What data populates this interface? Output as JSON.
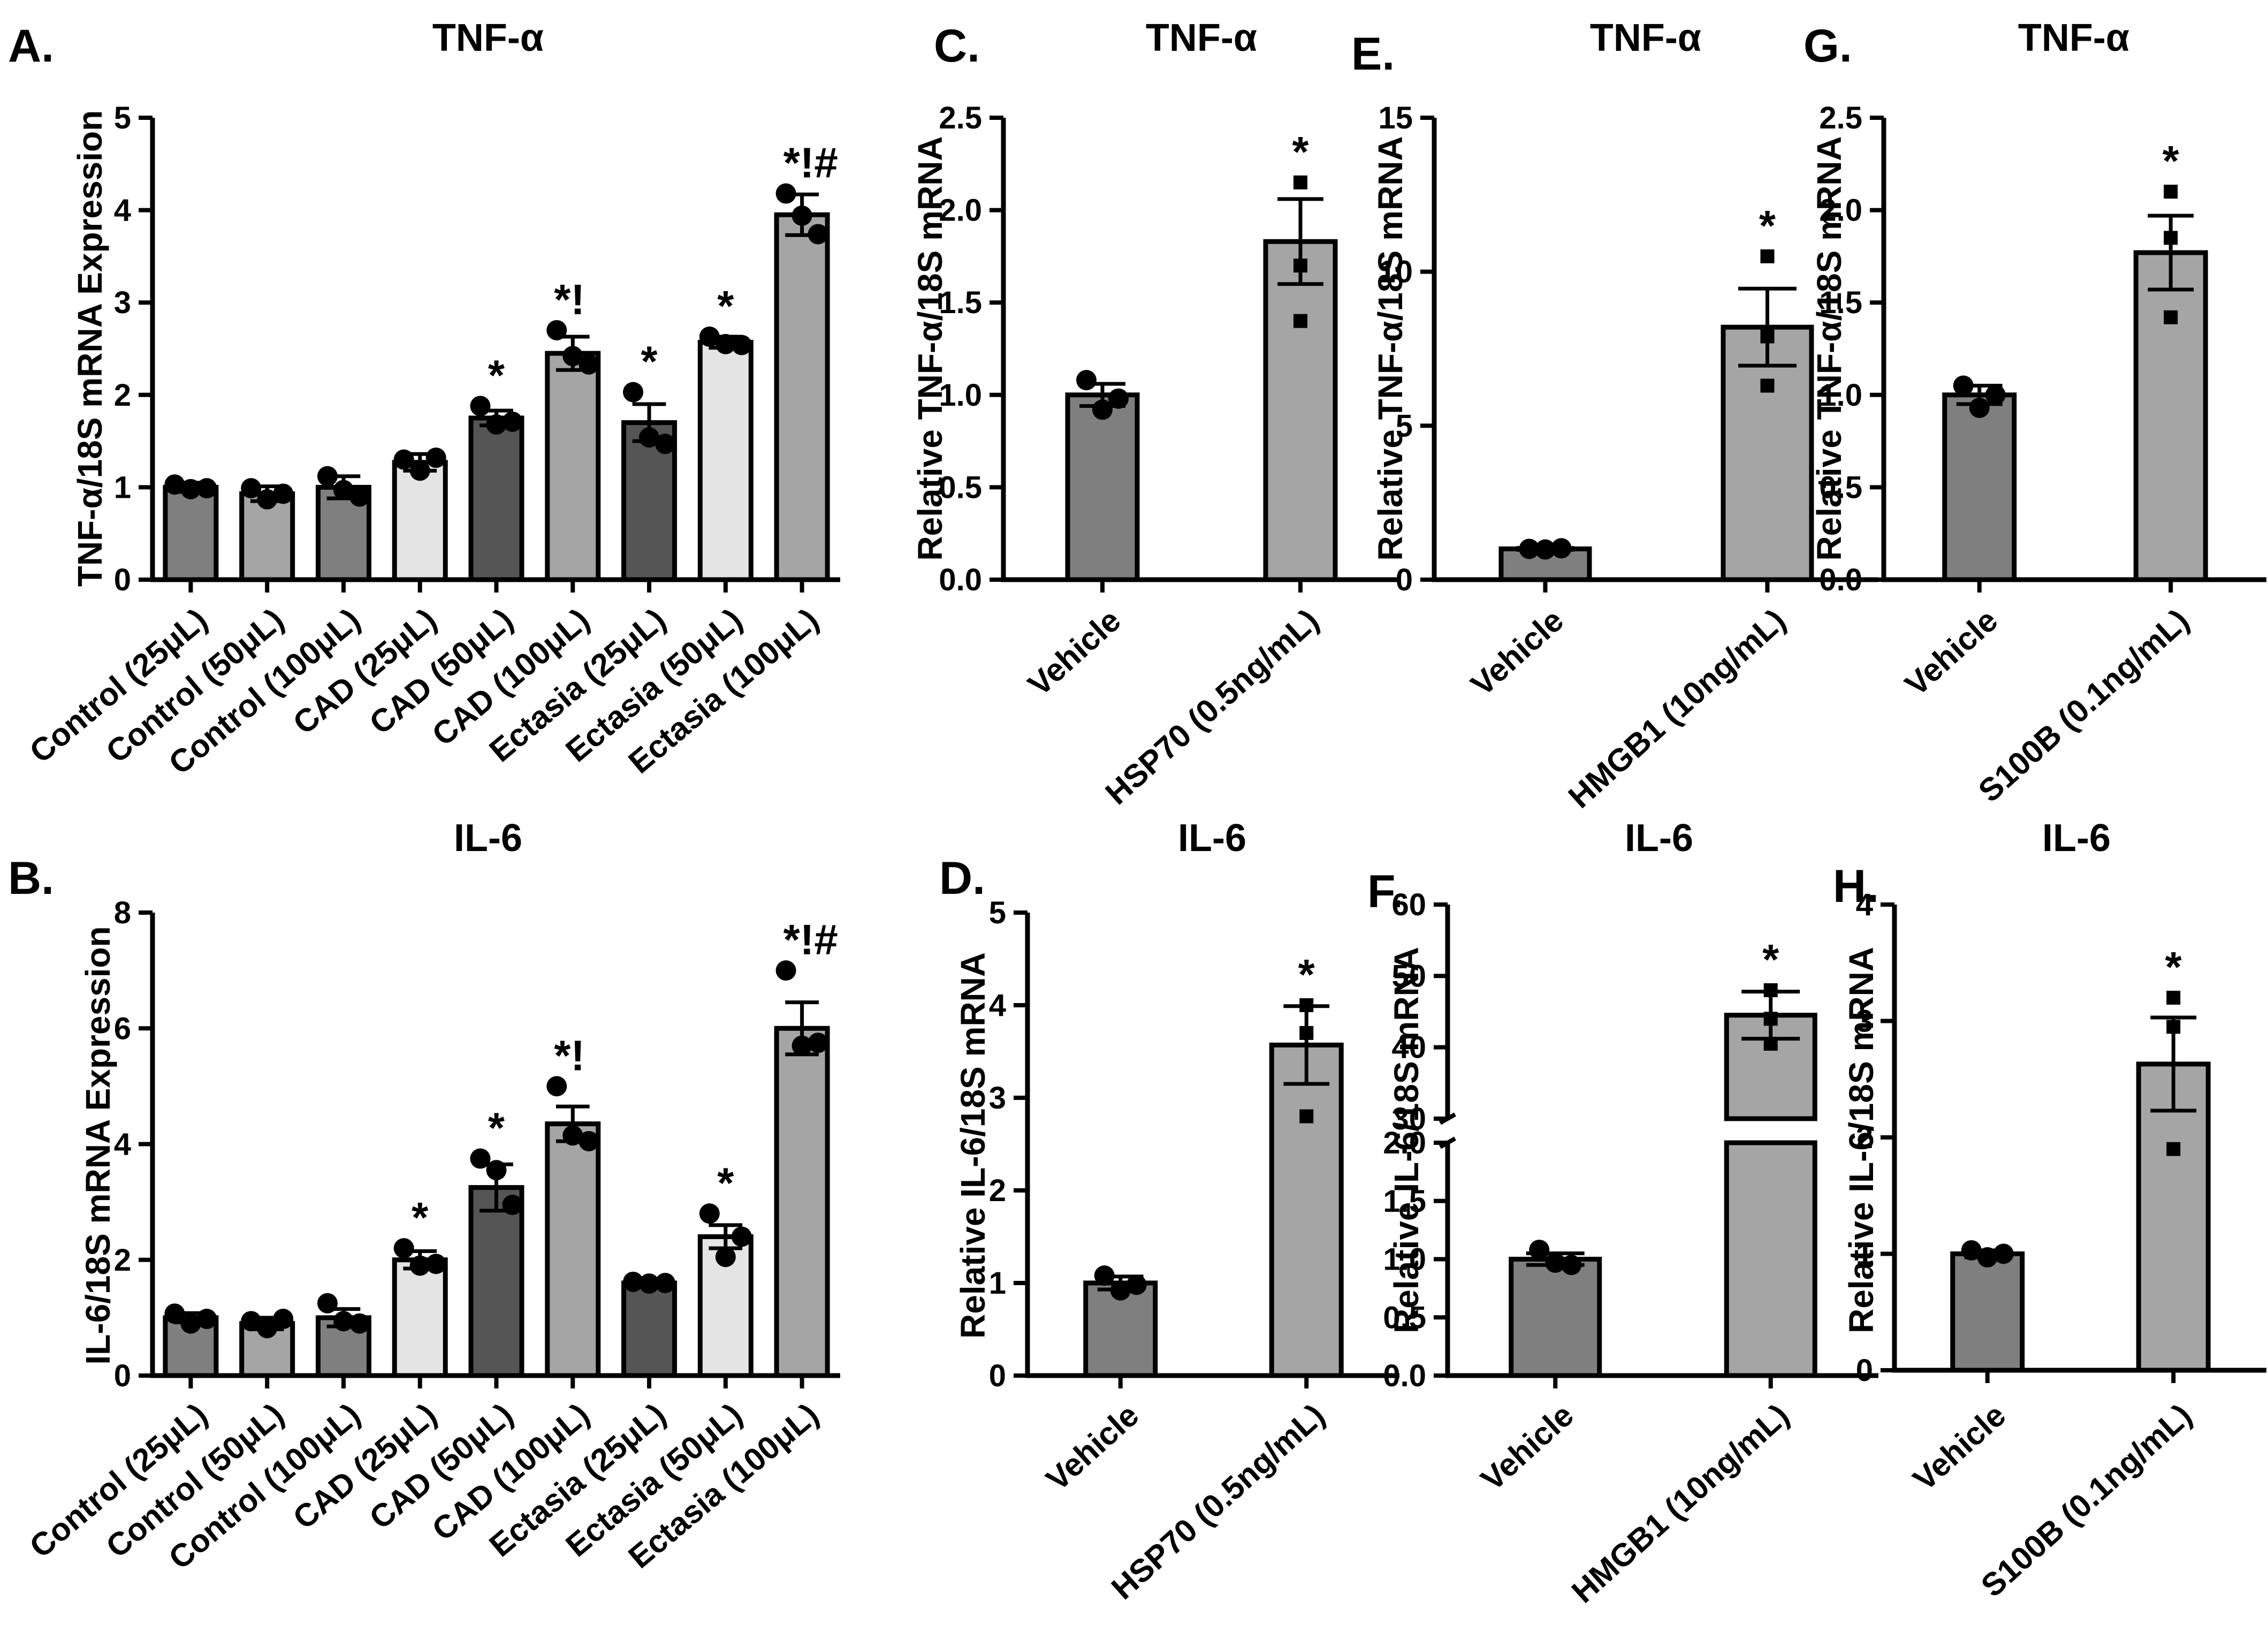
{
  "chart_data": [
    {
      "id": "A",
      "type": "bar",
      "letter": "A.",
      "title": "TNF-α",
      "ylabel": "TNF-α/18S mRNA Expression",
      "ylim": [
        0,
        5
      ],
      "yticks": [
        0,
        1,
        2,
        3,
        4,
        5
      ],
      "categories": [
        "Control (25μL)",
        "Control (50μL)",
        "Control (100μL)",
        "CAD (25μL)",
        "CAD (50μL)",
        "CAD (100μL)",
        "Ectasia (25μL)",
        "Ectasia (50μL)",
        "Ectasia (100μL)"
      ],
      "values": [
        1.0,
        0.93,
        1.0,
        1.27,
        1.75,
        2.45,
        1.7,
        2.57,
        3.95
      ],
      "errors": [
        0.05,
        0.08,
        0.12,
        0.09,
        0.08,
        0.18,
        0.2,
        0.06,
        0.22
      ],
      "points": [
        [
          1.03,
          0.98,
          0.99
        ],
        [
          0.99,
          0.87,
          0.93
        ],
        [
          1.12,
          0.97,
          0.9
        ],
        [
          1.3,
          1.18,
          1.32
        ],
        [
          1.88,
          1.68,
          1.71
        ],
        [
          2.7,
          2.42,
          2.33
        ],
        [
          2.03,
          1.54,
          1.47
        ],
        [
          2.63,
          2.55,
          2.54
        ],
        [
          4.18,
          3.94,
          3.74
        ]
      ],
      "fills": [
        "#7f7f7f",
        "#a5a5a5",
        "#7f7f7f",
        "#e4e4e4",
        "#555555",
        "#a5a5a5",
        "#555555",
        "#e4e4e4",
        "#a5a5a5"
      ],
      "annotations": [
        "",
        "",
        "",
        "",
        "*",
        "*!",
        "*",
        "*",
        "*!#"
      ],
      "marker": "circle"
    },
    {
      "id": "B",
      "type": "bar",
      "letter": "B.",
      "title": "IL-6",
      "ylabel": "IL-6/18S mRNA Expression",
      "ylim": [
        0,
        8
      ],
      "yticks": [
        0,
        2,
        4,
        6,
        8
      ],
      "categories": [
        "Control (25μL)",
        "Control (50μL)",
        "Control (100μL)",
        "CAD (25μL)",
        "CAD (50μL)",
        "CAD (100μL)",
        "Ectasia (25μL)",
        "Ectasia (50μL)",
        "Ectasia (100μL)"
      ],
      "values": [
        1.0,
        0.9,
        1.0,
        2.0,
        3.25,
        4.35,
        1.6,
        2.4,
        6.0
      ],
      "errors": [
        0.08,
        0.1,
        0.15,
        0.15,
        0.4,
        0.3,
        0.04,
        0.2,
        0.45
      ],
      "points": [
        [
          1.07,
          0.9,
          0.98
        ],
        [
          0.94,
          0.82,
          0.98
        ],
        [
          1.25,
          0.94,
          0.9
        ],
        [
          2.2,
          1.9,
          1.93
        ],
        [
          3.75,
          3.55,
          2.95
        ],
        [
          5.0,
          4.15,
          4.05
        ],
        [
          1.62,
          1.59,
          1.6
        ],
        [
          2.8,
          2.05,
          2.4
        ],
        [
          7.0,
          5.7,
          5.75
        ]
      ],
      "fills": [
        "#7f7f7f",
        "#a5a5a5",
        "#7f7f7f",
        "#e4e4e4",
        "#555555",
        "#a5a5a5",
        "#555555",
        "#e4e4e4",
        "#a5a5a5"
      ],
      "annotations": [
        "",
        "",
        "",
        "*",
        "*",
        "*!",
        "",
        "*",
        "*!#"
      ],
      "marker": "circle"
    },
    {
      "id": "C",
      "type": "bar",
      "letter": "C.",
      "title": "TNF-α",
      "ylabel": "Relative TNF-α/18S mRNA",
      "ylim": [
        0,
        2.5
      ],
      "yticks": [
        "0.0",
        "0.5",
        "1.0",
        "1.5",
        "2.0",
        "2.5"
      ],
      "categories": [
        "Vehicle",
        "HSP70 (0.5ng/mL)"
      ],
      "values": [
        1.0,
        1.83
      ],
      "errors": [
        0.06,
        0.23
      ],
      "points": [
        [
          1.08,
          0.92,
          0.98
        ],
        [
          2.15,
          1.7,
          1.4
        ]
      ],
      "fills": [
        "#7f7f7f",
        "#a5a5a5"
      ],
      "annotations": [
        "",
        "*"
      ],
      "markers": [
        "circle",
        "square"
      ]
    },
    {
      "id": "D",
      "type": "bar",
      "letter": "D.",
      "title": "IL-6",
      "ylabel": "Relative IL-6/18S mRNA",
      "ylim": [
        0,
        5
      ],
      "yticks": [
        0,
        1,
        2,
        3,
        4,
        5
      ],
      "categories": [
        "Vehicle",
        "HSP70 (0.5ng/mL)"
      ],
      "values": [
        1.0,
        3.57
      ],
      "errors": [
        0.07,
        0.42
      ],
      "points": [
        [
          1.08,
          0.92,
          0.98
        ],
        [
          4.0,
          3.7,
          2.8
        ]
      ],
      "fills": [
        "#7f7f7f",
        "#a5a5a5"
      ],
      "annotations": [
        "",
        "*"
      ],
      "markers": [
        "circle",
        "square"
      ]
    },
    {
      "id": "E",
      "type": "bar",
      "letter": "E.",
      "title": "TNF-α",
      "ylabel": "Relative TNF-α/18S mRNA",
      "ylim": [
        0,
        15
      ],
      "yticks": [
        0,
        5,
        10,
        15
      ],
      "categories": [
        "Vehicle",
        "HMGB1 (10ng/mL)"
      ],
      "values": [
        1.0,
        8.2
      ],
      "errors": [
        0.03,
        1.25
      ],
      "points": [
        [
          1.0,
          0.98,
          1.02
        ],
        [
          10.5,
          7.9,
          6.3
        ]
      ],
      "fills": [
        "#7f7f7f",
        "#a5a5a5"
      ],
      "annotations": [
        "",
        "*"
      ],
      "markers": [
        "circle",
        "square"
      ]
    },
    {
      "id": "F",
      "type": "bar-broken-axis",
      "letter": "F.",
      "title": "IL-6",
      "ylabel": "Relative IL-6/18S mRNA",
      "lower_ylim": [
        0,
        2.0
      ],
      "lower_yticks": [
        "0.0",
        "0.5",
        "1.0",
        "1.5",
        "2.0"
      ],
      "upper_ylim": [
        30,
        60
      ],
      "upper_yticks": [
        30,
        40,
        50,
        60
      ],
      "categories": [
        "Vehicle",
        "HMGB1 (10ng/mL)"
      ],
      "values": [
        1.0,
        44.5
      ],
      "errors": [
        0.05,
        3.3
      ],
      "points": [
        [
          1.08,
          0.97,
          0.95
        ],
        [
          48.0,
          44.0,
          40.5
        ]
      ],
      "fills": [
        "#7f7f7f",
        "#a5a5a5"
      ],
      "annotations": [
        "",
        "*"
      ],
      "markers": [
        "circle",
        "square"
      ]
    },
    {
      "id": "G",
      "type": "bar",
      "letter": "G.",
      "title": "TNF-α",
      "ylabel": "Relative TNF-α/18S mRNA",
      "ylim": [
        0,
        2.5
      ],
      "yticks": [
        "0.0",
        "0.5",
        "1.0",
        "1.5",
        "2.0",
        "2.5"
      ],
      "categories": [
        "Vehicle",
        "S100B (0.1ng/mL)"
      ],
      "values": [
        1.0,
        1.77
      ],
      "errors": [
        0.05,
        0.2
      ],
      "points": [
        [
          1.05,
          0.93,
          1.0
        ],
        [
          2.1,
          1.85,
          1.42
        ]
      ],
      "fills": [
        "#7f7f7f",
        "#a5a5a5"
      ],
      "annotations": [
        "",
        "*"
      ],
      "markers": [
        "circle",
        "square"
      ]
    },
    {
      "id": "H",
      "type": "bar",
      "letter": "H.",
      "title": "IL-6",
      "ylabel": "Relative IL-6/18S mRNA",
      "ylim": [
        0,
        4
      ],
      "yticks": [
        0,
        1,
        2,
        3,
        4
      ],
      "categories": [
        "Vehicle",
        "S100B (0.1ng/mL)"
      ],
      "values": [
        1.0,
        2.63
      ],
      "errors": [
        0.03,
        0.4
      ],
      "points": [
        [
          1.03,
          0.97,
          1.0
        ],
        [
          3.2,
          2.95,
          1.9
        ]
      ],
      "fills": [
        "#7f7f7f",
        "#a5a5a5"
      ],
      "annotations": [
        "",
        "*"
      ],
      "markers": [
        "circle",
        "square"
      ]
    }
  ]
}
